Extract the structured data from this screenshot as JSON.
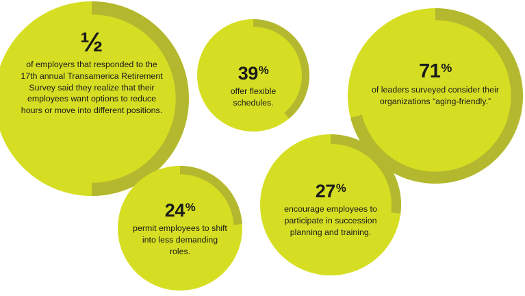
{
  "colors": {
    "bubble_fill": "#d6de23",
    "ring_accent": "#b3b82f",
    "text": "#1a1a1a"
  },
  "bubbles": [
    {
      "id": "half",
      "stat": "½",
      "percent_sign": "",
      "description": "of employers that responded to the 17th annual Transamerica Retirement Survey said they realize that their employees want options to reduce hours or move into different positions.",
      "ring_fraction": 0.5
    },
    {
      "id": "39",
      "stat": "39",
      "percent_sign": "%",
      "description": "offer flexible schedules.",
      "ring_fraction": 0.39
    },
    {
      "id": "71",
      "stat": "71",
      "percent_sign": "%",
      "description": "of leaders surveyed consider their organizations “aging-friendly.”",
      "ring_fraction": 0.71
    },
    {
      "id": "24",
      "stat": "24",
      "percent_sign": "%",
      "description": "permit employees to shift into less demanding roles.",
      "ring_fraction": 0.24
    },
    {
      "id": "27",
      "stat": "27",
      "percent_sign": "%",
      "description": "encourage employees to participate in succession planning and training.",
      "ring_fraction": 0.27
    }
  ]
}
